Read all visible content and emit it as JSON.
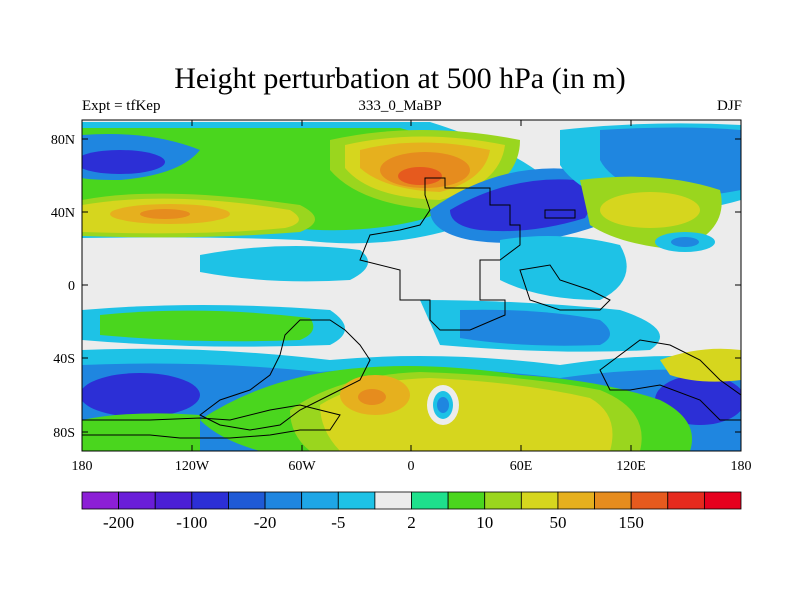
{
  "title": "Height perturbation at 500 hPa (in m)",
  "subtitle_left": "Expt = tfKep",
  "subtitle_center": "333_0_MaBP",
  "subtitle_right": "DJF",
  "lat_ticks": [
    "80N",
    "40N",
    "0",
    "40S",
    "80S"
  ],
  "lon_ticks": [
    "180",
    "120W",
    "60W",
    "0",
    "60E",
    "120E",
    "180"
  ],
  "colorbar": {
    "colors": [
      "#8c1fd6",
      "#6a1ed8",
      "#4b1fd6",
      "#2c2fd6",
      "#1f5ad6",
      "#1f86e0",
      "#1ea6e6",
      "#1ec2e6",
      "#ececec",
      "#1ee08c",
      "#4ad61e",
      "#9ad61e",
      "#d6d61e",
      "#e6b01e",
      "#e68c1e",
      "#e65a1e",
      "#e62a1e",
      "#e6001e"
    ],
    "labels": [
      "-200",
      "-100",
      "-20",
      "-5",
      "2",
      "10",
      "50",
      "150"
    ]
  },
  "map_colors": {
    "background_neutral": "#ececec",
    "blue_mid": "#1f86e0",
    "blue_deep": "#2c2fd6",
    "cyan": "#1ec2e6",
    "green": "#4ad61e",
    "yellow_green": "#9ad61e",
    "yellow": "#d6d61e",
    "orange": "#e68c1e",
    "red_orange": "#e65a1e"
  }
}
